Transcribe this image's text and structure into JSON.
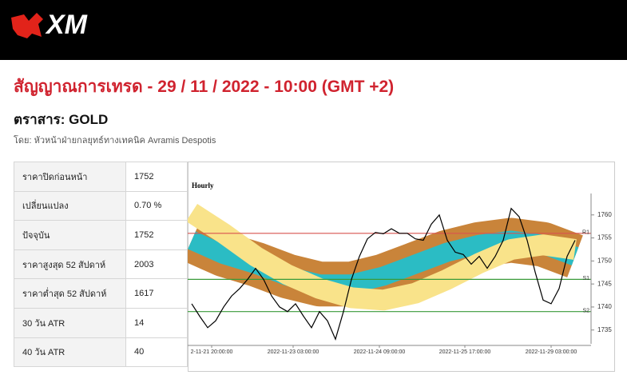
{
  "header": {
    "logo": "XM"
  },
  "title": "สัญญาณการเทรด - 29 / 11 / 2022 - 10:00 (GMT +2)",
  "instrument": "ตราสาร: GOLD",
  "author": "โดย: หัวหน้าฝ่ายกลยุทธ์ทางเทคนิค Avramis Despotis",
  "table": {
    "rows": [
      [
        "ราคาปิดก่อนหน้า",
        "1752"
      ],
      [
        "เปลี่ยนแปลง",
        "0.70 %"
      ],
      [
        "ปัจจุบัน",
        "1752"
      ],
      [
        "ราคาสูงสุด 52 สัปดาห์",
        "2003"
      ],
      [
        "ราคาต่ำสุด 52 สัปดาห์",
        "1617"
      ],
      [
        "30 วัน ATR",
        "14"
      ],
      [
        "40 วัน ATR",
        "40"
      ]
    ]
  },
  "chart_data": {
    "type": "line",
    "label": "Hourly",
    "xlim": [
      0,
      48
    ],
    "ylim": [
      1732,
      1765
    ],
    "yticks": [
      1735,
      1740,
      1745,
      1750,
      1755,
      1760
    ],
    "xticks": [
      {
        "value": 2.5,
        "label": "2-11-21 20:00:00"
      },
      {
        "value": 12.7,
        "label": "2022-11-23 03:00:00"
      },
      {
        "value": 23.5,
        "label": "2022-11-24 09:00:00"
      },
      {
        "value": 34.2,
        "label": "2022-11-25 17:00:00"
      },
      {
        "value": 45,
        "label": "2022-11-29 03:00:00"
      }
    ],
    "levels": [
      {
        "label": "R1",
        "value": 1756,
        "color": "#d9534f"
      },
      {
        "label": "S1",
        "value": 1746,
        "color": "#3a9a3a"
      },
      {
        "label": "S2",
        "value": 1739,
        "color": "#3a9a3a"
      }
    ],
    "bands": [
      {
        "color": "#c9843a",
        "x": [
          0,
          4,
          8,
          12,
          16,
          20,
          24,
          28,
          32,
          36,
          40,
          44,
          48
        ],
        "values": [
          1754.5,
          1751.4,
          1749.3,
          1746.7,
          1745,
          1745,
          1746.7,
          1749.3,
          1751.9,
          1753.6,
          1754.5,
          1753.6,
          1751
        ]
      },
      {
        "color": "#f9e38a",
        "x": [
          0,
          4,
          8,
          12,
          16,
          20,
          24,
          28,
          32,
          36,
          40,
          44,
          48
        ],
        "values": [
          1760.5,
          1756,
          1751,
          1747,
          1744,
          1742,
          1741.5,
          1743,
          1746,
          1749.5,
          1752.5,
          1753.5,
          1752.5
        ]
      }
    ],
    "series": [
      {
        "color": "#000000",
        "x": [
          0,
          1,
          2,
          3,
          4,
          5,
          6,
          7,
          8,
          9,
          10,
          11,
          12,
          13,
          14,
          15,
          16,
          17,
          18,
          19,
          20,
          21,
          22,
          23,
          24,
          25,
          26,
          27,
          28,
          29,
          30,
          31,
          32,
          33,
          34,
          35,
          36,
          37,
          38,
          39,
          40,
          41,
          42,
          43,
          44,
          45,
          46,
          47,
          48
        ],
        "values": [
          1740.7,
          1738,
          1735.5,
          1737,
          1740,
          1742.4,
          1744,
          1746,
          1748.4,
          1746,
          1742.4,
          1740,
          1739,
          1740.7,
          1738,
          1735.5,
          1739,
          1737,
          1733,
          1739,
          1746,
          1751,
          1754.8,
          1756.2,
          1755.9,
          1757,
          1756,
          1756,
          1754.8,
          1754.5,
          1758,
          1760,
          1754.5,
          1751.9,
          1751.4,
          1749.3,
          1751,
          1748.4,
          1751,
          1754.5,
          1761.4,
          1759.6,
          1754.5,
          1747.6,
          1741.5,
          1740.7,
          1744,
          1751,
          1754.5
        ]
      }
    ]
  }
}
